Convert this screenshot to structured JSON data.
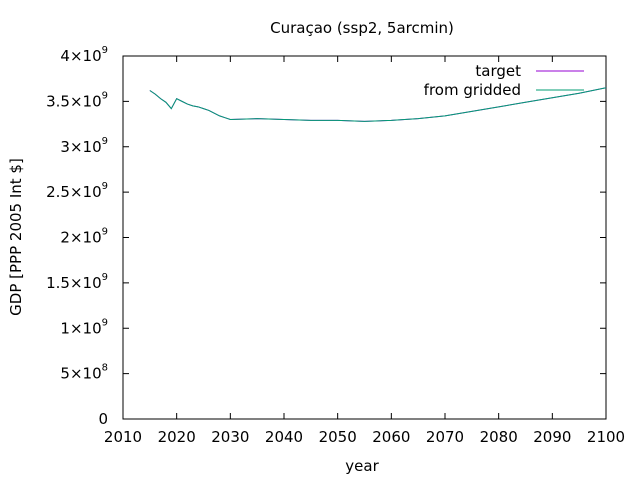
{
  "chart_data": {
    "type": "line",
    "title": "Curaçao (ssp2, 5arcmin)",
    "xlabel": "year",
    "ylabel": "GDP [PPP 2005 Int $]",
    "xlim": [
      2010,
      2100
    ],
    "ylim": [
      0,
      4000000000
    ],
    "grid": false,
    "legend_position": "top-right",
    "x_ticks": [
      {
        "value": 2010,
        "label": "2010"
      },
      {
        "value": 2020,
        "label": "2020"
      },
      {
        "value": 2030,
        "label": "2030"
      },
      {
        "value": 2040,
        "label": "2040"
      },
      {
        "value": 2050,
        "label": "2050"
      },
      {
        "value": 2060,
        "label": "2060"
      },
      {
        "value": 2070,
        "label": "2070"
      },
      {
        "value": 2080,
        "label": "2080"
      },
      {
        "value": 2090,
        "label": "2090"
      },
      {
        "value": 2100,
        "label": "2100"
      }
    ],
    "y_ticks": [
      {
        "value": 0,
        "mantissa": "0",
        "exponent": ""
      },
      {
        "value": 500000000,
        "mantissa": "5×10",
        "exponent": "8"
      },
      {
        "value": 1000000000,
        "mantissa": "1×10",
        "exponent": "9"
      },
      {
        "value": 1500000000,
        "mantissa": "1.5×10",
        "exponent": "9"
      },
      {
        "value": 2000000000,
        "mantissa": "2×10",
        "exponent": "9"
      },
      {
        "value": 2500000000,
        "mantissa": "2.5×10",
        "exponent": "9"
      },
      {
        "value": 3000000000,
        "mantissa": "3×10",
        "exponent": "9"
      },
      {
        "value": 3500000000,
        "mantissa": "3.5×10",
        "exponent": "9"
      },
      {
        "value": 4000000000,
        "mantissa": "4×10",
        "exponent": "9"
      }
    ],
    "series": [
      {
        "name": "target",
        "color": "#9400d3",
        "x": [
          2015,
          2016,
          2017,
          2018,
          2019,
          2020,
          2021,
          2022,
          2023,
          2024,
          2025,
          2026,
          2027,
          2028,
          2029,
          2030,
          2035,
          2040,
          2045,
          2050,
          2055,
          2060,
          2065,
          2070,
          2075,
          2080,
          2085,
          2090,
          2095,
          2100
        ],
        "values": [
          3620000000,
          3580000000,
          3530000000,
          3490000000,
          3420000000,
          3530000000,
          3500000000,
          3470000000,
          3450000000,
          3440000000,
          3420000000,
          3400000000,
          3370000000,
          3340000000,
          3320000000,
          3300000000,
          3310000000,
          3300000000,
          3290000000,
          3290000000,
          3280000000,
          3290000000,
          3310000000,
          3340000000,
          3390000000,
          3440000000,
          3490000000,
          3540000000,
          3590000000,
          3650000000
        ]
      },
      {
        "name": "from gridded",
        "color": "#009e73",
        "x": [
          2015,
          2016,
          2017,
          2018,
          2019,
          2020,
          2021,
          2022,
          2023,
          2024,
          2025,
          2026,
          2027,
          2028,
          2029,
          2030,
          2035,
          2040,
          2045,
          2050,
          2055,
          2060,
          2065,
          2070,
          2075,
          2080,
          2085,
          2090,
          2095,
          2100
        ],
        "values": [
          3620000000,
          3580000000,
          3530000000,
          3490000000,
          3420000000,
          3530000000,
          3500000000,
          3470000000,
          3450000000,
          3440000000,
          3420000000,
          3400000000,
          3370000000,
          3340000000,
          3320000000,
          3300000000,
          3310000000,
          3300000000,
          3290000000,
          3290000000,
          3280000000,
          3290000000,
          3310000000,
          3340000000,
          3390000000,
          3440000000,
          3490000000,
          3540000000,
          3590000000,
          3650000000
        ]
      }
    ]
  }
}
